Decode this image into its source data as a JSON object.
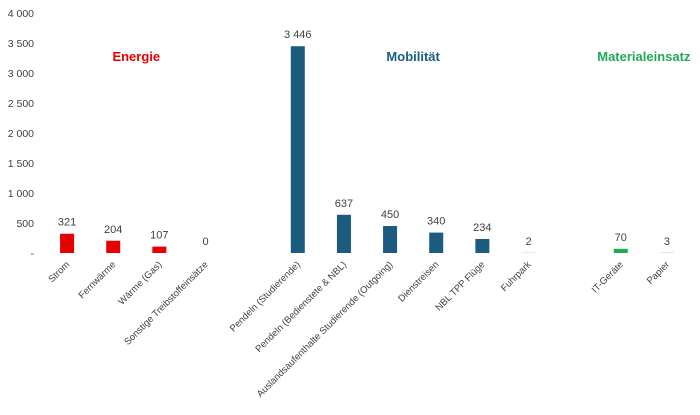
{
  "chart_data": {
    "type": "bar",
    "title": "",
    "xlabel": "",
    "ylabel": "",
    "ylim": [
      0,
      4000
    ],
    "yticks": [
      "4 000",
      "3 500",
      "3 000",
      "2 500",
      "2 000",
      "1 500",
      "1 000",
      "500",
      "-"
    ],
    "grid": false,
    "groups": [
      {
        "name": "Energie",
        "color": "#e60000"
      },
      {
        "name": "Mobilität",
        "color": "#1a5b7e"
      },
      {
        "name": "Materialeinsatz",
        "color": "#1faa55"
      }
    ],
    "categories": [
      {
        "label": "Strom",
        "value": 321,
        "value_label": "321",
        "group": 0,
        "slot": 0
      },
      {
        "label": "Fernwärme",
        "value": 204,
        "value_label": "204",
        "group": 0,
        "slot": 1
      },
      {
        "label": "Wärme (Gas)",
        "value": 107,
        "value_label": "107",
        "group": 0,
        "slot": 2
      },
      {
        "label": "Sonstige Treibstoffeinsätze",
        "value": 0,
        "value_label": "0",
        "group": 0,
        "slot": 3
      },
      {
        "label": "Pendeln (Studierende)",
        "value": 3446,
        "value_label": "3 446",
        "group": 1,
        "slot": 5
      },
      {
        "label": "Pendeln (Bedienstete & NBL)",
        "value": 637,
        "value_label": "637",
        "group": 1,
        "slot": 6
      },
      {
        "label": "Auslandsaufenthalte Studierende (Outgoing)",
        "value": 450,
        "value_label": "450",
        "group": 1,
        "slot": 7
      },
      {
        "label": "Dienstreisen",
        "value": 340,
        "value_label": "340",
        "group": 1,
        "slot": 8
      },
      {
        "label": "NBL TPP Flüge",
        "value": 234,
        "value_label": "234",
        "group": 1,
        "slot": 9
      },
      {
        "label": "Fuhrpark",
        "value": 2,
        "value_label": "2",
        "group": 1,
        "slot": 10
      },
      {
        "label": "IT-Geräte",
        "value": 70,
        "value_label": "70",
        "group": 2,
        "slot": 12
      },
      {
        "label": "Papier",
        "value": 3,
        "value_label": "3",
        "group": 2,
        "slot": 13
      }
    ]
  }
}
